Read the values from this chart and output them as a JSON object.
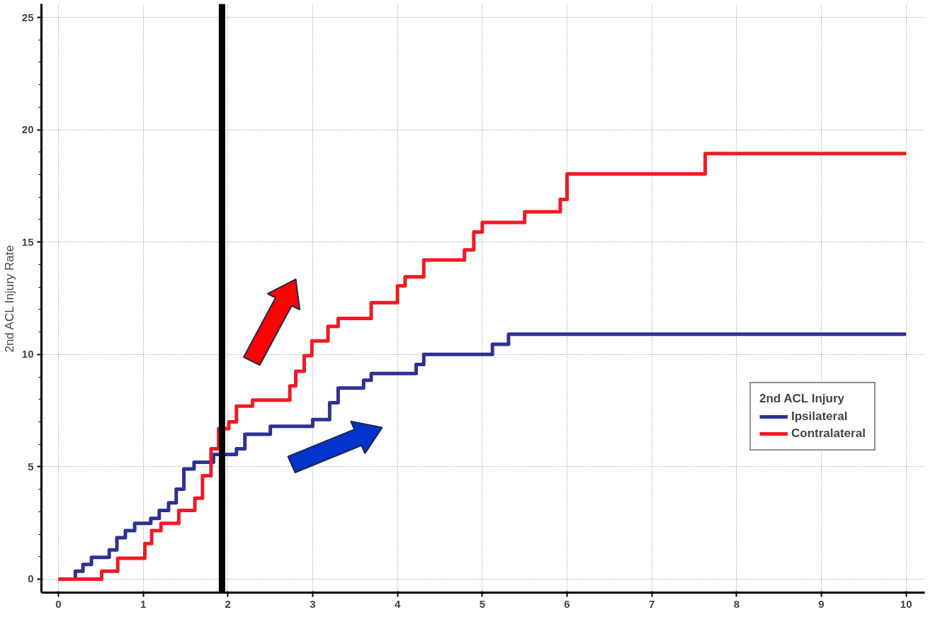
{
  "chart_data": {
    "type": "step",
    "ylabel": "2nd ACL Injury Rate",
    "legend_title": "2nd ACL Injury",
    "legend": "bottom right",
    "grid": true,
    "line_style": "solid",
    "marker": "none",
    "xlim": [
      -0.2,
      10.22
    ],
    "ylim": [
      -0.6,
      25.6
    ],
    "xticks": [
      0,
      1,
      2,
      3,
      4,
      5,
      6,
      7,
      8,
      9,
      10
    ],
    "yticks": [
      0,
      5,
      10,
      15,
      20,
      25
    ],
    "series": [
      {
        "name": "Ipsilateral",
        "color": "#2e3192",
        "x": [
          0,
          0.2,
          0.29,
          0.39,
          0.6,
          0.69,
          0.79,
          0.9,
          1.09,
          1.19,
          1.3,
          1.39,
          1.48,
          1.6,
          1.83,
          2.1,
          2.2,
          2.5,
          3.0,
          3.2,
          3.3,
          3.6,
          3.69,
          4.22,
          4.31,
          5.12,
          5.31,
          10
        ],
        "values": [
          0,
          0.35,
          0.65,
          0.97,
          1.3,
          1.84,
          2.16,
          2.48,
          2.7,
          3.06,
          3.4,
          4.0,
          4.9,
          5.2,
          5.55,
          5.8,
          6.45,
          6.8,
          7.1,
          7.85,
          8.5,
          8.85,
          9.15,
          9.55,
          10.0,
          10.45,
          10.9,
          10.9
        ]
      },
      {
        "name": "Contralateral",
        "color": "#ed1c24",
        "x": [
          0,
          0.51,
          0.7,
          1.02,
          1.1,
          1.21,
          1.42,
          1.61,
          1.7,
          1.8,
          1.89,
          2.01,
          2.1,
          2.29,
          2.73,
          2.8,
          2.9,
          2.99,
          3.18,
          3.3,
          3.69,
          4.0,
          4.09,
          4.31,
          4.79,
          4.9,
          5.0,
          5.5,
          5.92,
          6.0,
          7.63,
          10
        ],
        "values": [
          0,
          0.35,
          0.93,
          1.58,
          2.16,
          2.48,
          3.06,
          3.6,
          4.6,
          5.8,
          6.7,
          7.0,
          7.7,
          7.97,
          8.6,
          9.25,
          9.95,
          10.6,
          11.25,
          11.6,
          12.3,
          13.05,
          13.45,
          14.2,
          14.65,
          15.45,
          15.87,
          16.35,
          16.9,
          18.03,
          18.94,
          18.94
        ]
      }
    ],
    "ref_lines": [
      {
        "axis": "x",
        "value": 1.93,
        "color": "#000000"
      }
    ]
  }
}
